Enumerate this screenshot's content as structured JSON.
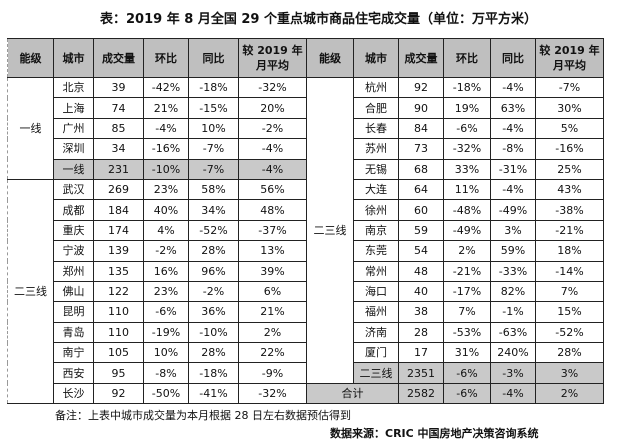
{
  "title": "表：2019 年 8 月全国 29 个重点城市商品住宅成交量（单位：万平方米）",
  "headers": [
    "能级",
    "城市",
    "成交量",
    "环比",
    "同比",
    "较 2019 年\n月平均"
  ],
  "left": {
    "groups": [
      {
        "level": "一线",
        "rows": [
          [
            "北京",
            "39",
            "-42%",
            "-18%",
            "-32%"
          ],
          [
            "上海",
            "74",
            "21%",
            "-15%",
            "20%"
          ],
          [
            "广州",
            "85",
            "-4%",
            "10%",
            "-2%"
          ],
          [
            "深圳",
            "34",
            "-16%",
            "-7%",
            "-4%"
          ]
        ],
        "subtotal": [
          "一线",
          "231",
          "-10%",
          "-7%",
          "-4%"
        ]
      },
      {
        "level": "二三线",
        "rows": [
          [
            "武汉",
            "269",
            "23%",
            "58%",
            "56%"
          ],
          [
            "成都",
            "184",
            "40%",
            "34%",
            "48%"
          ],
          [
            "重庆",
            "174",
            "4%",
            "-52%",
            "-37%"
          ],
          [
            "宁波",
            "139",
            "-2%",
            "28%",
            "13%"
          ],
          [
            "郑州",
            "135",
            "16%",
            "96%",
            "39%"
          ],
          [
            "佛山",
            "122",
            "23%",
            "-2%",
            "6%"
          ],
          [
            "昆明",
            "110",
            "-6%",
            "36%",
            "21%"
          ],
          [
            "青岛",
            "110",
            "-19%",
            "-10%",
            "2%"
          ],
          [
            "南宁",
            "105",
            "10%",
            "28%",
            "22%"
          ],
          [
            "西安",
            "95",
            "-8%",
            "-18%",
            "-9%"
          ],
          [
            "长沙",
            "92",
            "-50%",
            "-41%",
            "-32%"
          ]
        ]
      }
    ]
  },
  "right": {
    "level": "二三线",
    "rows": [
      [
        "杭州",
        "92",
        "-18%",
        "-4%",
        "-7%"
      ],
      [
        "合肥",
        "90",
        "19%",
        "63%",
        "30%"
      ],
      [
        "长春",
        "84",
        "-6%",
        "-4%",
        "5%"
      ],
      [
        "苏州",
        "73",
        "-32%",
        "-8%",
        "-16%"
      ],
      [
        "无锡",
        "68",
        "33%",
        "-31%",
        "25%"
      ],
      [
        "大连",
        "64",
        "11%",
        "-4%",
        "43%"
      ],
      [
        "徐州",
        "60",
        "-48%",
        "-49%",
        "-38%"
      ],
      [
        "南京",
        "59",
        "-49%",
        "3%",
        "-21%"
      ],
      [
        "东莞",
        "54",
        "2%",
        "59%",
        "18%"
      ],
      [
        "常州",
        "48",
        "-21%",
        "-33%",
        "-14%"
      ],
      [
        "海口",
        "40",
        "-17%",
        "82%",
        "7%"
      ],
      [
        "福州",
        "38",
        "7%",
        "-1%",
        "15%"
      ],
      [
        "济南",
        "28",
        "-53%",
        "-63%",
        "-52%"
      ],
      [
        "厦门",
        "17",
        "31%",
        "240%",
        "28%"
      ]
    ],
    "subtotal": [
      "二三线",
      "2351",
      "-6%",
      "-3%",
      "3%"
    ],
    "total": [
      "合计",
      "2582",
      "-6%",
      "-4%",
      "2%"
    ]
  },
  "note": "备注：上表中城市成交量为本月根据 28 日左右数据预估得到",
  "source": "数据来源：CRIC 中国房地产决策咨询系统",
  "colors": {
    "header_bg": "#bfbfbf",
    "subtotal_bg": "#c9c9c9"
  }
}
